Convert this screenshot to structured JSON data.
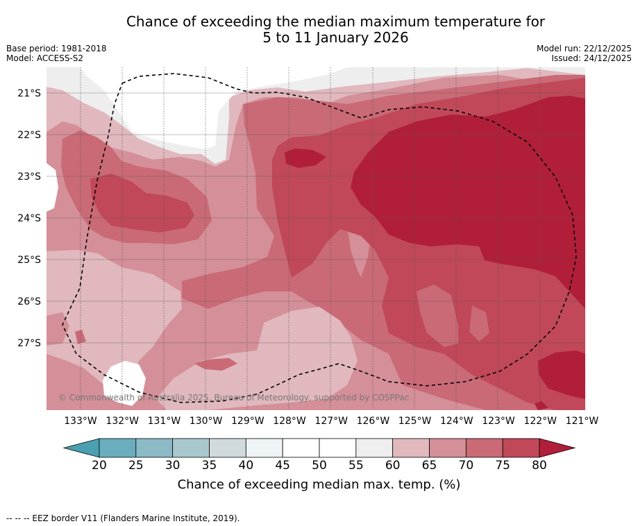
{
  "title_line1": "Chance of exceeding the median maximum temperature for",
  "title_line2": "5 to 11 January 2026",
  "base_period": "Base period: 1981-2018",
  "model": "Model: ACCESS-S2",
  "model_run": "Model run: 22/12/2025",
  "issued": "Issued: 24/12/2025",
  "copyright": "© Commonwealth of Australia 2025, Bureau of Meteorology, supported by COSPPac",
  "colorbar_label": "Chance of exceeding median max. temp. (%)",
  "footnote": "--  --  -- EEZ border V11 (Flanders Marine Institute, 2019).",
  "colors": {
    "c40_45": "#ffffff",
    "c50_55": "#ffffff",
    "c55_60": "#eeeeee",
    "c60_65": "#e0b8bd",
    "c65_70": "#d48f98",
    "c70_75": "#c96a76",
    "c75_80": "#c04858",
    "c80": "#b11e3a"
  },
  "chart_data": {
    "type": "heatmap",
    "x_ticks": [
      "133°W",
      "132°W",
      "131°W",
      "130°W",
      "129°W",
      "128°W",
      "127°W",
      "126°W",
      "125°W",
      "124°W",
      "123°W",
      "122°W",
      "121°W"
    ],
    "y_ticks": [
      "21°S",
      "22°S",
      "23°S",
      "24°S",
      "25°S",
      "26°S",
      "27°S"
    ],
    "colorbar_ticks": [
      "20",
      "25",
      "30",
      "35",
      "40",
      "45",
      "50",
      "55",
      "60",
      "65",
      "70",
      "75",
      "80"
    ],
    "colorbar_colors": [
      "#6aaebd",
      "#8bbac5",
      "#a9c8cd",
      "#d0d9db",
      "#eef3f5",
      "#ffffff",
      "#ffffff",
      "#eeeeee",
      "#e0b8bd",
      "#d48f98",
      "#c96a76",
      "#c04858"
    ],
    "below_color": "#4aa0b0",
    "above_color": "#b11e3a",
    "range": [
      20,
      80
    ],
    "units": "%"
  }
}
